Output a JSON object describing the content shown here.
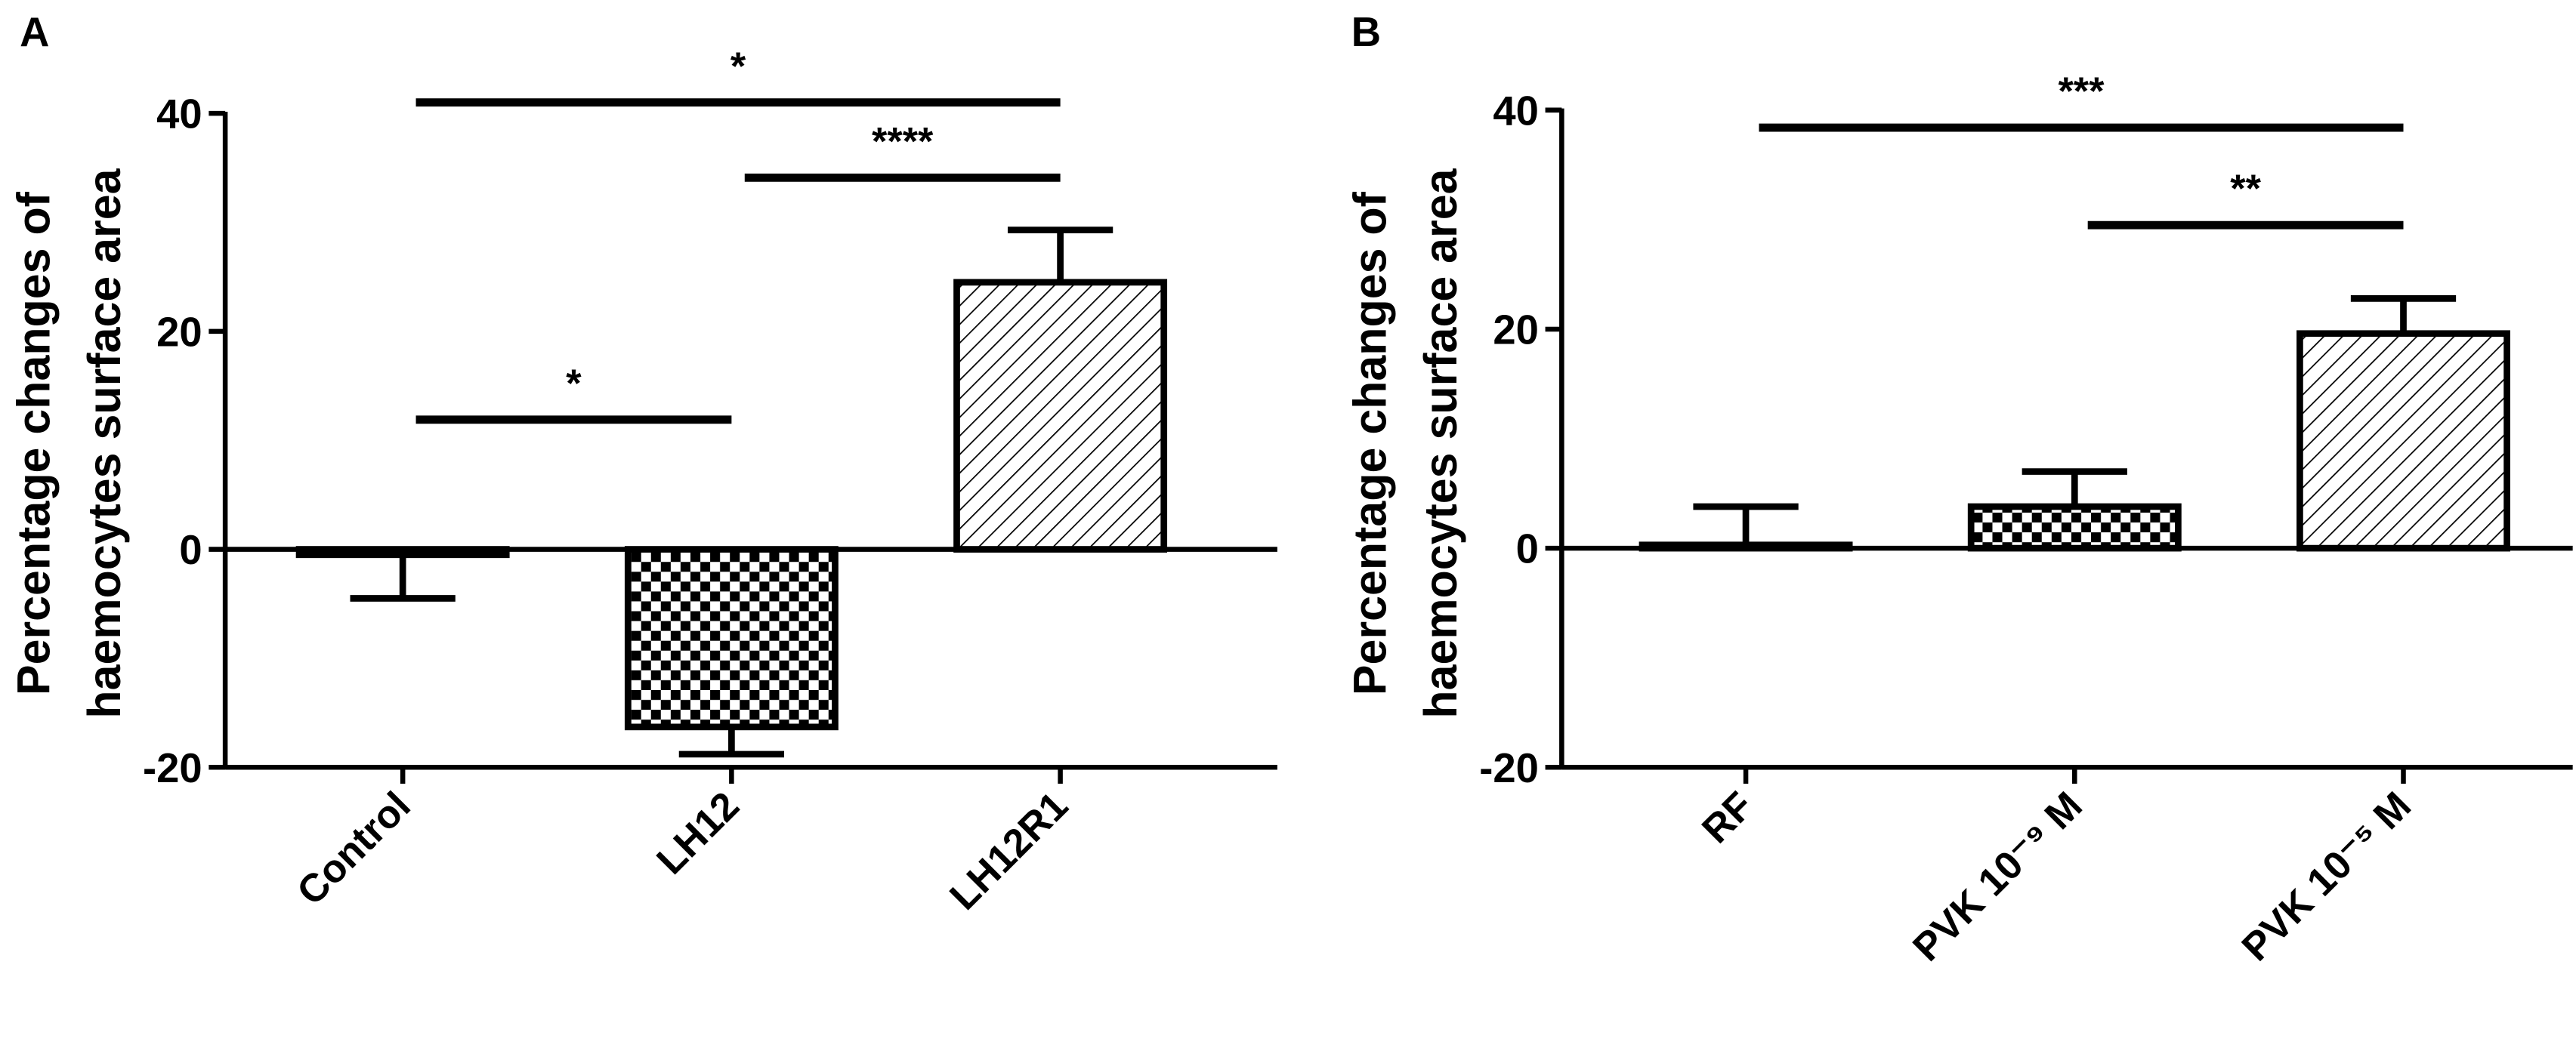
{
  "chart_data": [
    {
      "type": "bar",
      "panel": "A",
      "ylabel": [
        "Percentage changes of",
        "haemocytes surface area"
      ],
      "categories": [
        "Control",
        "LH12",
        "LH12R1"
      ],
      "values": [
        -0.5,
        -16.3,
        24.5
      ],
      "errors": [
        4,
        2.5,
        4.8
      ],
      "patterns": [
        "none",
        "checker",
        "hatch"
      ],
      "color": "#000000",
      "ylim": [
        -20,
        40
      ],
      "yticks": [
        -20,
        0,
        20,
        40
      ],
      "significance": [
        {
          "from": 0,
          "to": 2,
          "y": 41,
          "label": "*"
        },
        {
          "from": 1,
          "to": 2,
          "y": 34.1,
          "label": "****"
        },
        {
          "from": 0,
          "to": 1,
          "y": 11.9,
          "label": "*"
        }
      ]
    },
    {
      "type": "bar",
      "panel": "B",
      "ylabel": [
        "Percentage changes of",
        "haemocytes surface area"
      ],
      "categories": [
        "RF",
        "PVK 10⁻⁹ M",
        "PVK 10⁻⁵ M"
      ],
      "values": [
        0.3,
        3.8,
        19.6
      ],
      "errors": [
        3.5,
        3.2,
        3.2
      ],
      "patterns": [
        "none",
        "checker",
        "hatch"
      ],
      "color": "#000000",
      "ylim": [
        -20,
        40
      ],
      "yticks": [
        -20,
        0,
        20,
        40
      ],
      "significance": [
        {
          "from": 0,
          "to": 2,
          "y": 38.4,
          "label": "***"
        },
        {
          "from": 1,
          "to": 2,
          "y": 29.5,
          "label": "**"
        }
      ]
    }
  ]
}
